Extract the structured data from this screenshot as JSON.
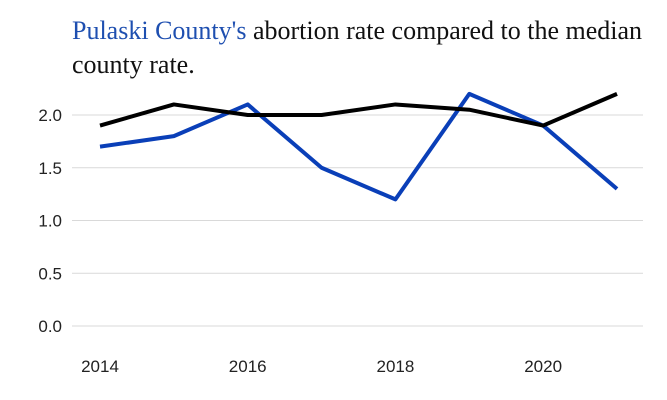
{
  "title": {
    "highlight": "Pulaski County's",
    "rest": " abortion rate compared to the median county rate."
  },
  "colors": {
    "county": "#0a3fb8",
    "median": "#000000",
    "grid": "#d9d9d9",
    "highlight": "#1e4fb0"
  },
  "chart_data": {
    "type": "line",
    "x": [
      2014,
      2015,
      2016,
      2017,
      2018,
      2019,
      2020,
      2021
    ],
    "series": [
      {
        "values": [
          1.7,
          1.8,
          2.1,
          1.5,
          1.2,
          2.2,
          1.9,
          1.3
        ]
      },
      {
        "values": [
          1.9,
          2.1,
          2.0,
          2.0,
          2.1,
          2.05,
          1.9,
          2.2
        ]
      }
    ],
    "x_ticks": [
      "2014",
      "2016",
      "2018",
      "2020"
    ],
    "y_ticks": [
      "0.0",
      "0.5",
      "1.0",
      "1.5",
      "2.0"
    ],
    "ylim": [
      0,
      2.2
    ],
    "grid": true
  }
}
